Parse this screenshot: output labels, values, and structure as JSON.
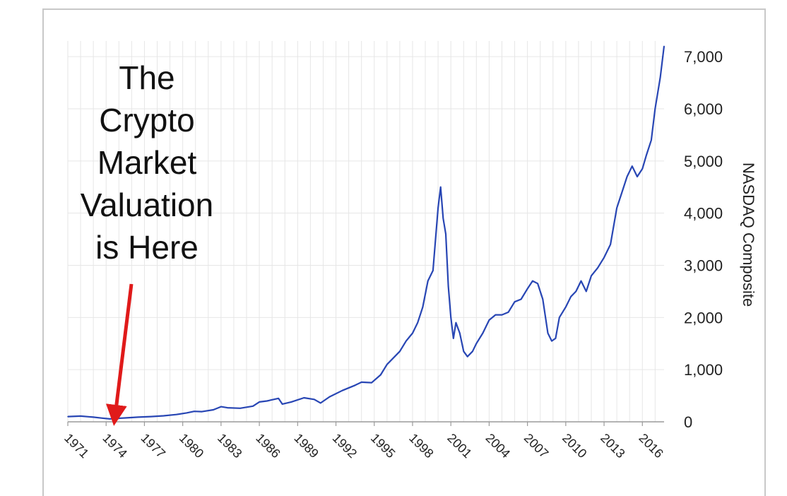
{
  "annotation_lines": [
    "The",
    "Crypto",
    "Market",
    "Valuation",
    "is Here"
  ],
  "colors": {
    "line": "#2846b4",
    "arrow": "#e01a1a",
    "grid": "#e6e6e6",
    "axis": "#9a9a9a",
    "text": "#222222"
  },
  "chart_data": {
    "type": "line",
    "title": "",
    "xlabel": "",
    "ylabel": "NASDAQ Composite",
    "y_axis_side": "right",
    "ylim": [
      0,
      7300
    ],
    "xlim": [
      1971,
      2017.7
    ],
    "grid": true,
    "yticks": [
      0,
      1000,
      2000,
      3000,
      4000,
      5000,
      6000,
      7000
    ],
    "ytick_labels": [
      "0",
      "1,000",
      "2,000",
      "3,000",
      "4,000",
      "5,000",
      "6,000",
      "7,000"
    ],
    "xticks": [
      1971,
      1974,
      1977,
      1980,
      1983,
      1986,
      1989,
      1992,
      1995,
      1998,
      2001,
      2004,
      2007,
      2010,
      2013,
      2016
    ],
    "xtick_labels": [
      "1971",
      "1974",
      "1977",
      "1980",
      "1983",
      "1986",
      "1989",
      "1992",
      "1995",
      "1998",
      "2001",
      "2004",
      "2007",
      "2010",
      "2013",
      "2016"
    ],
    "series": [
      {
        "name": "",
        "x": [
          1971.0,
          1972.0,
          1973.0,
          1973.7,
          1974.3,
          1974.8,
          1975.5,
          1976.5,
          1977.5,
          1978.5,
          1979.5,
          1980.3,
          1980.9,
          1981.5,
          1982.4,
          1983.0,
          1983.5,
          1984.5,
          1985.5,
          1986.0,
          1986.6,
          1987.5,
          1987.8,
          1988.5,
          1989.5,
          1990.3,
          1990.8,
          1991.5,
          1992.5,
          1993.5,
          1994.0,
          1994.8,
          1995.5,
          1996.0,
          1996.6,
          1997.0,
          1997.5,
          1998.0,
          1998.4,
          1998.8,
          1999.2,
          1999.6,
          2000.0,
          2000.2,
          2000.4,
          2000.6,
          2000.8,
          2001.0,
          2001.2,
          2001.4,
          2001.7,
          2002.0,
          2002.3,
          2002.7,
          2003.0,
          2003.5,
          2004.0,
          2004.5,
          2005.0,
          2005.5,
          2006.0,
          2006.5,
          2007.0,
          2007.4,
          2007.8,
          2008.2,
          2008.6,
          2008.9,
          2009.2,
          2009.5,
          2010.0,
          2010.4,
          2010.8,
          2011.2,
          2011.6,
          2012.0,
          2012.5,
          2013.0,
          2013.5,
          2014.0,
          2014.4,
          2014.8,
          2015.2,
          2015.6,
          2016.0,
          2016.3,
          2016.7,
          2017.0,
          2017.4,
          2017.7
        ],
        "y": [
          100,
          110,
          90,
          70,
          55,
          65,
          75,
          90,
          100,
          115,
          140,
          170,
          200,
          195,
          230,
          290,
          270,
          260,
          300,
          380,
          400,
          450,
          340,
          380,
          460,
          430,
          360,
          480,
          600,
          700,
          760,
          750,
          900,
          1100,
          1250,
          1350,
          1550,
          1700,
          1900,
          2200,
          2700,
          2900,
          4100,
          4500,
          3900,
          3600,
          2600,
          2000,
          1600,
          1900,
          1700,
          1350,
          1250,
          1350,
          1500,
          1700,
          1950,
          2050,
          2050,
          2100,
          2300,
          2350,
          2550,
          2700,
          2650,
          2350,
          1700,
          1550,
          1600,
          2000,
          2200,
          2400,
          2500,
          2700,
          2500,
          2800,
          2950,
          3150,
          3400,
          4100,
          4400,
          4700,
          4900,
          4700,
          4850,
          5100,
          5400,
          6000,
          6600,
          7200
        ]
      }
    ]
  }
}
